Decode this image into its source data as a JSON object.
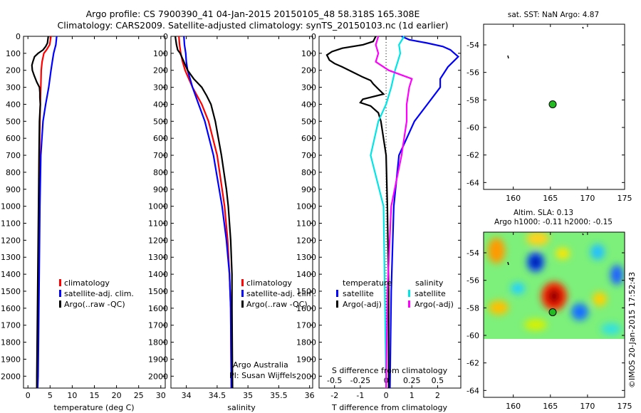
{
  "header": {
    "line1": "Argo profile: CS 7900390_41 04-Jan-2015 20150105_48 58.318S 165.308E",
    "line2": "Climatology: CARS2009. Satellite-adjusted climatology: synTS_20150103.nc (1d earlier)"
  },
  "colors": {
    "climatology": "#ff0000",
    "satellite": "#0000ff",
    "argo": "#000000",
    "sat_salinity": "#00e5e5",
    "argo_salinity": "#ff00ff",
    "float": "#22bb22"
  },
  "chart_data": [
    {
      "id": "temperature",
      "type": "line",
      "xlabel": "temperature (deg C)",
      "xlim": [
        -1,
        31
      ],
      "xticks": [
        0,
        5,
        10,
        15,
        20,
        25,
        30
      ],
      "ylim": [
        2070,
        0
      ],
      "yticks": [
        0,
        100,
        200,
        300,
        400,
        500,
        600,
        700,
        800,
        900,
        1000,
        1100,
        1200,
        1300,
        1400,
        1500,
        1600,
        1700,
        1800,
        1900,
        2000
      ],
      "legend": [
        "climatology",
        "satellite-adj. clim.",
        "Argo(..raw -QC)"
      ],
      "series": [
        {
          "name": "climatology",
          "color": "climatology",
          "depth": [
            0,
            50,
            80,
            100,
            150,
            200,
            300,
            400,
            500,
            700,
            1000,
            1500,
            2000,
            2070
          ],
          "value": [
            5.2,
            4.9,
            4.2,
            3.6,
            3.2,
            3.0,
            2.9,
            2.8,
            2.7,
            2.6,
            2.5,
            2.3,
            2.1,
            2.0
          ]
        },
        {
          "name": "satellite-adj. clim.",
          "color": "satellite",
          "depth": [
            0,
            50,
            80,
            100,
            150,
            200,
            300,
            400,
            500,
            700,
            1000,
            1500,
            2000,
            2070
          ],
          "value": [
            6.5,
            6.3,
            6.0,
            5.8,
            5.5,
            5.2,
            4.7,
            4.0,
            3.4,
            2.9,
            2.7,
            2.5,
            2.3,
            2.2
          ]
        },
        {
          "name": "Argo(..raw -QC)",
          "color": "argo",
          "depth": [
            0,
            40,
            60,
            80,
            100,
            120,
            150,
            170,
            200,
            230,
            270,
            300,
            330,
            360,
            400,
            500,
            700,
            1000,
            1500,
            2000,
            2070
          ],
          "value": [
            4.6,
            4.4,
            4.0,
            3.4,
            2.3,
            1.5,
            1.1,
            0.9,
            1.0,
            1.4,
            2.0,
            2.6,
            2.7,
            2.7,
            2.8,
            2.6,
            2.5,
            2.4,
            2.2,
            2.0,
            2.0
          ]
        }
      ]
    },
    {
      "id": "salinity",
      "type": "line",
      "xlabel": "salinity",
      "xlim": [
        33.75,
        36.05
      ],
      "xticks": [
        34,
        34.5,
        35,
        35.5,
        36
      ],
      "ylim": [
        2070,
        0
      ],
      "legend": [
        "climatology",
        "satellite-adj. clim.",
        "Argo(..raw -QC)"
      ],
      "annotations": [
        "Argo Australia",
        "PI: Susan Wijffels"
      ],
      "series": [
        {
          "name": "climatology",
          "color": "climatology",
          "depth": [
            0,
            50,
            100,
            150,
            200,
            300,
            400,
            500,
            700,
            1000,
            1200,
            1400,
            1600,
            2070
          ],
          "value": [
            33.88,
            33.89,
            33.91,
            33.94,
            33.98,
            34.1,
            34.25,
            34.36,
            34.5,
            34.62,
            34.67,
            34.7,
            34.72,
            34.73
          ]
        },
        {
          "name": "satellite-adj. clim.",
          "color": "satellite",
          "depth": [
            0,
            50,
            100,
            150,
            200,
            300,
            400,
            500,
            700,
            1000,
            1200,
            1400,
            1600,
            2070
          ],
          "value": [
            33.96,
            33.97,
            33.99,
            34.0,
            34.02,
            34.1,
            34.2,
            34.3,
            34.44,
            34.58,
            34.65,
            34.7,
            34.72,
            34.73
          ]
        },
        {
          "name": "Argo(..raw -QC)",
          "color": "argo",
          "depth": [
            0,
            50,
            80,
            100,
            150,
            200,
            250,
            300,
            350,
            400,
            500,
            700,
            900,
            1000,
            1200,
            1400,
            1600,
            2070
          ],
          "value": [
            33.82,
            33.84,
            33.86,
            33.9,
            33.96,
            34.02,
            34.12,
            34.25,
            34.33,
            34.4,
            34.47,
            34.57,
            34.65,
            34.68,
            34.72,
            34.74,
            34.74,
            34.75
          ]
        }
      ]
    },
    {
      "id": "difference",
      "type": "line",
      "xlabel": "T difference from climatology",
      "x2label": "S difference from climatology",
      "xlim": [
        -2.6,
        2.9
      ],
      "xticks": [
        -2,
        -1,
        0,
        1,
        2
      ],
      "x2ticks": [
        "-0.5",
        "-0.25",
        "0",
        "0.25",
        "0.5"
      ],
      "ylim": [
        2070,
        0
      ],
      "legend_temperature": {
        "title": "temperature",
        "items": [
          "satellite",
          "Argo(-adj)"
        ]
      },
      "legend_salinity": {
        "title": "salinity",
        "items": [
          "satellite",
          "Argo(-adj)"
        ]
      },
      "series": [
        {
          "name": "T satellite",
          "color": "satellite",
          "depth": [
            0,
            20,
            40,
            60,
            80,
            120,
            180,
            250,
            300,
            400,
            500,
            700,
            1000,
            1500,
            2070
          ],
          "value": [
            0.6,
            0.9,
            1.6,
            2.2,
            2.5,
            2.8,
            2.4,
            2.1,
            2.1,
            1.6,
            1.1,
            0.5,
            0.3,
            0.2,
            0.15
          ]
        },
        {
          "name": "T Argo(-adj)",
          "color": "argo",
          "depth": [
            0,
            30,
            50,
            70,
            90,
            110,
            140,
            160,
            180,
            210,
            240,
            260,
            280,
            310,
            340,
            370,
            390,
            410,
            450,
            500,
            700,
            1000,
            1500,
            2070
          ],
          "value": [
            -0.4,
            -0.5,
            -0.9,
            -1.7,
            -2.1,
            -2.3,
            -2.2,
            -2.0,
            -1.7,
            -1.3,
            -0.9,
            -0.6,
            -0.5,
            -0.3,
            -0.1,
            -0.9,
            -1.0,
            -0.6,
            -0.3,
            -0.2,
            0.0,
            0.05,
            0.1,
            0.1
          ]
        },
        {
          "name": "S satellite",
          "color": "sat_salinity",
          "depth": [
            0,
            50,
            100,
            150,
            200,
            300,
            400,
            500,
            700,
            1000,
            1500,
            2070
          ],
          "value": [
            0.7,
            0.5,
            0.55,
            0.45,
            0.35,
            0.2,
            0.0,
            -0.3,
            -0.6,
            -0.1,
            -0.05,
            0.0
          ]
        },
        {
          "name": "S Argo(-adj)",
          "color": "argo_salinity",
          "depth": [
            0,
            50,
            100,
            150,
            200,
            250,
            300,
            400,
            500,
            700,
            1000,
            1500,
            2070
          ],
          "value": [
            -0.3,
            -0.4,
            -0.3,
            -0.4,
            0.1,
            1.0,
            0.9,
            0.8,
            0.8,
            0.6,
            0.2,
            0.05,
            0.0
          ]
        }
      ]
    },
    {
      "id": "sst_map",
      "type": "scatter",
      "title": "sat. SST: NaN Argo: 4.87",
      "xlim": [
        156,
        175
      ],
      "ylim": [
        -64.5,
        -52.5
      ],
      "xticks": [
        160,
        165,
        170,
        175
      ],
      "yticks": [
        -54,
        -56,
        -58,
        -60,
        -62,
        -64
      ],
      "float": {
        "lon": 165.308,
        "lat": -58.318
      }
    },
    {
      "id": "sla_map",
      "type": "heatmap",
      "title": "Altim. SLA: 0.13",
      "subtitle": "Argo h1000: -0.11 h2000: -0.15",
      "xlim": [
        156,
        175
      ],
      "ylim": [
        -64.5,
        -52.5
      ],
      "xticks": [
        160,
        165,
        170,
        175
      ],
      "yticks": [
        -54,
        -56,
        -58,
        -60,
        -62,
        -64
      ],
      "float": {
        "lon": 165.308,
        "lat": -58.318
      }
    }
  ],
  "footer": {
    "credit": "©IMOS 20-Jan-2015 17:52:43"
  }
}
